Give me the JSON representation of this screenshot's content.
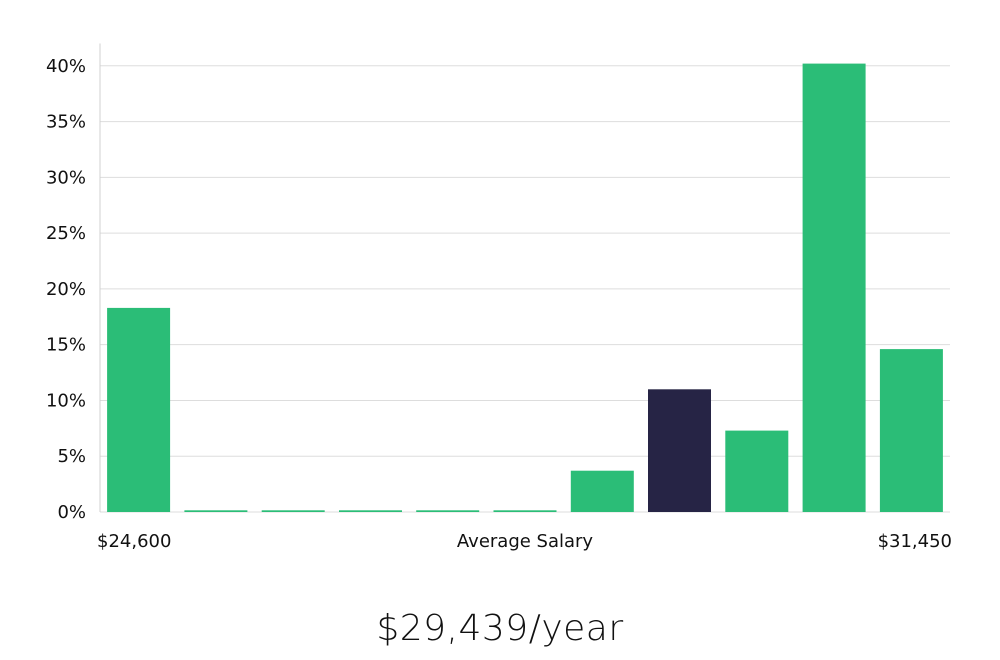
{
  "chart_data": {
    "type": "bar",
    "values": [
      18.3,
      0.15,
      0.15,
      0.15,
      0.15,
      0.15,
      3.7,
      11.0,
      7.3,
      40.2,
      14.6
    ],
    "highlight_index": 7,
    "colors": {
      "bar": "#2bbd77",
      "highlight": "#262445",
      "grid": "#dddddd",
      "axis": "#d0d0d0"
    },
    "ylim": [
      0,
      42
    ],
    "yticks": [
      {
        "value": 0,
        "label": "0%"
      },
      {
        "value": 5,
        "label": "5%"
      },
      {
        "value": 10,
        "label": "10%"
      },
      {
        "value": 15,
        "label": "15%"
      },
      {
        "value": 20,
        "label": "20%"
      },
      {
        "value": 25,
        "label": "25%"
      },
      {
        "value": 30,
        "label": "30%"
      },
      {
        "value": 35,
        "label": "35%"
      },
      {
        "value": 40,
        "label": "40%"
      }
    ],
    "xlabels": {
      "left": "$24,600",
      "center": "Average Salary",
      "right": "$31,450"
    },
    "grid": true
  },
  "salary_text": "$29,439/year"
}
